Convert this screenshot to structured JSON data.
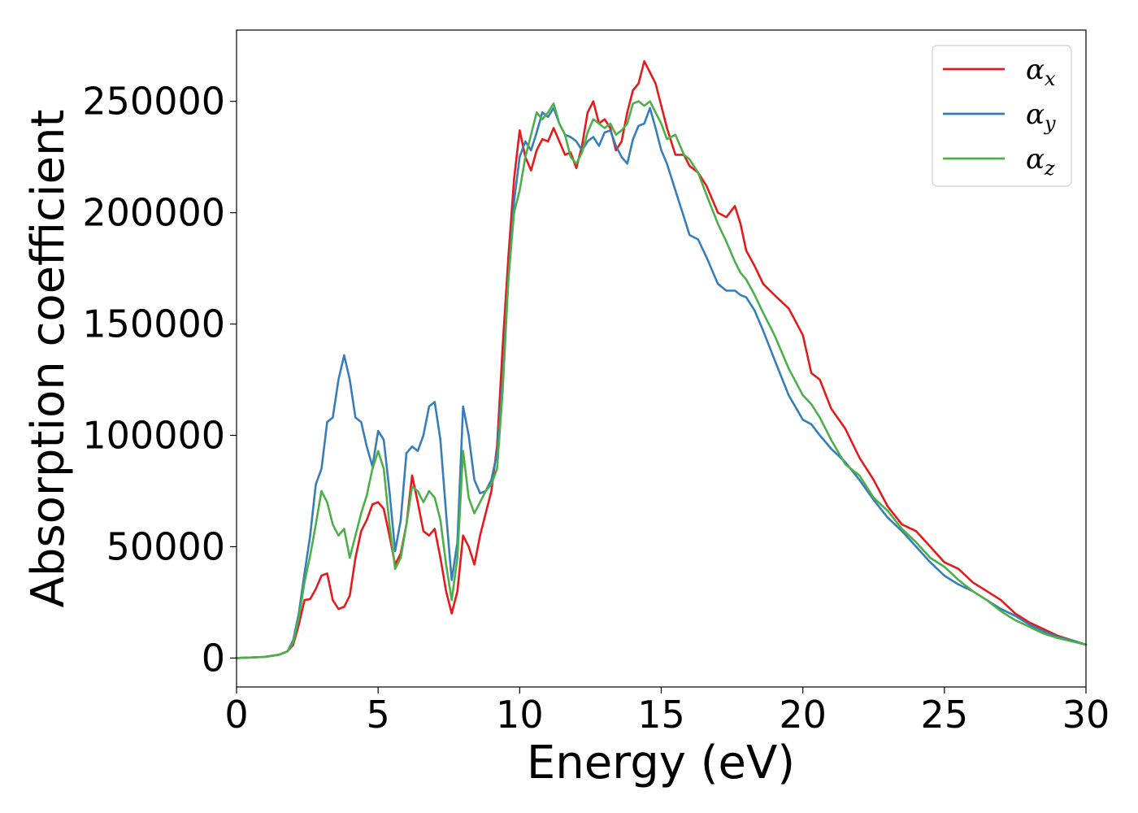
{
  "chart_data": {
    "type": "line",
    "title": "",
    "xlabel": "Energy (eV)",
    "ylabel": "Absorption coefficient",
    "xlim": [
      0,
      30
    ],
    "ylim": [
      -13000,
      282000
    ],
    "xticks": [
      0,
      5,
      10,
      15,
      20,
      25,
      30
    ],
    "yticks": [
      0,
      50000,
      100000,
      150000,
      200000,
      250000
    ],
    "grid": false,
    "legend_position": "top-right",
    "series": [
      {
        "name": "α",
        "subscript": "x",
        "color": "#e41a1c",
        "x": [
          0,
          1,
          1.5,
          1.8,
          2.0,
          2.2,
          2.4,
          2.6,
          2.8,
          3.0,
          3.2,
          3.4,
          3.6,
          3.8,
          4.0,
          4.2,
          4.4,
          4.6,
          4.8,
          5.0,
          5.2,
          5.4,
          5.6,
          5.8,
          6.0,
          6.2,
          6.4,
          6.6,
          6.8,
          7.0,
          7.2,
          7.4,
          7.6,
          7.8,
          8.0,
          8.2,
          8.4,
          8.6,
          8.8,
          9.0,
          9.2,
          9.4,
          9.6,
          9.8,
          10.0,
          10.2,
          10.4,
          10.6,
          10.8,
          11.0,
          11.2,
          11.4,
          11.6,
          11.8,
          12.0,
          12.2,
          12.4,
          12.6,
          12.8,
          13.0,
          13.2,
          13.4,
          13.6,
          13.8,
          14.0,
          14.2,
          14.4,
          14.6,
          14.8,
          15.0,
          15.2,
          15.5,
          15.8,
          16.0,
          16.3,
          16.6,
          17.0,
          17.3,
          17.6,
          17.8,
          18.0,
          18.3,
          18.6,
          19.0,
          19.5,
          20.0,
          20.3,
          20.6,
          21.0,
          21.5,
          22.0,
          22.5,
          23.0,
          23.5,
          24.0,
          24.5,
          25.0,
          25.5,
          26.0,
          26.5,
          27.0,
          27.5,
          28.0,
          28.5,
          29.0,
          29.5,
          30.0
        ],
        "y": [
          0,
          500,
          1500,
          3000,
          6000,
          15000,
          26000,
          26500,
          31000,
          37000,
          38000,
          26000,
          22000,
          23000,
          28000,
          45000,
          57000,
          62000,
          69000,
          70000,
          67000,
          55000,
          42000,
          47000,
          60000,
          82000,
          70000,
          57000,
          55000,
          58000,
          45000,
          30000,
          20000,
          30000,
          55000,
          50000,
          42000,
          55000,
          65000,
          75000,
          95000,
          140000,
          180000,
          215000,
          237000,
          225000,
          219000,
          228000,
          233000,
          232000,
          238000,
          232000,
          226000,
          227000,
          220000,
          230000,
          245000,
          250000,
          240000,
          242000,
          238000,
          228000,
          232000,
          245000,
          255000,
          258000,
          268000,
          263000,
          258000,
          248000,
          238000,
          226000,
          226000,
          221000,
          218000,
          212000,
          200000,
          198000,
          203000,
          195000,
          183000,
          176000,
          168000,
          163000,
          157000,
          145000,
          128000,
          125000,
          112000,
          103000,
          90000,
          80000,
          68000,
          60000,
          57000,
          50000,
          43000,
          40000,
          34000,
          30000,
          26000,
          20000,
          16000,
          13000,
          10000,
          8000,
          6000
        ]
      },
      {
        "name": "α",
        "subscript": "y",
        "color": "#377eb8",
        "x": [
          0,
          1,
          1.5,
          1.8,
          2.0,
          2.2,
          2.4,
          2.6,
          2.8,
          3.0,
          3.2,
          3.4,
          3.6,
          3.8,
          4.0,
          4.2,
          4.4,
          4.6,
          4.8,
          5.0,
          5.2,
          5.4,
          5.6,
          5.8,
          6.0,
          6.2,
          6.4,
          6.6,
          6.8,
          7.0,
          7.2,
          7.4,
          7.6,
          7.8,
          8.0,
          8.2,
          8.4,
          8.6,
          8.8,
          9.0,
          9.2,
          9.4,
          9.6,
          9.8,
          10.0,
          10.2,
          10.4,
          10.6,
          10.8,
          11.0,
          11.2,
          11.4,
          11.6,
          11.8,
          12.0,
          12.2,
          12.4,
          12.6,
          12.8,
          13.0,
          13.2,
          13.4,
          13.6,
          13.8,
          14.0,
          14.2,
          14.4,
          14.6,
          14.8,
          15.0,
          15.2,
          15.5,
          15.8,
          16.0,
          16.3,
          16.6,
          17.0,
          17.3,
          17.6,
          17.8,
          18.0,
          18.3,
          18.6,
          19.0,
          19.5,
          20.0,
          20.3,
          20.6,
          21.0,
          21.5,
          22.0,
          22.5,
          23.0,
          23.5,
          24.0,
          24.5,
          25.0,
          25.5,
          26.0,
          26.5,
          27.0,
          27.5,
          28.0,
          28.5,
          29.0,
          29.5,
          30.0
        ],
        "y": [
          0,
          500,
          1500,
          3000,
          8000,
          20000,
          38000,
          55000,
          78000,
          85000,
          106000,
          108000,
          125000,
          136000,
          125000,
          108000,
          106000,
          95000,
          86000,
          102000,
          98000,
          75000,
          48000,
          62000,
          92000,
          95000,
          93000,
          100000,
          113000,
          115000,
          98000,
          65000,
          35000,
          52000,
          113000,
          100000,
          80000,
          74000,
          75000,
          80000,
          92000,
          125000,
          170000,
          205000,
          225000,
          232000,
          228000,
          236000,
          245000,
          243000,
          247000,
          240000,
          235000,
          234000,
          232000,
          228000,
          232000,
          234000,
          230000,
          236000,
          237000,
          230000,
          225000,
          222000,
          233000,
          239000,
          240000,
          247000,
          238000,
          228000,
          222000,
          210000,
          198000,
          190000,
          188000,
          180000,
          168000,
          165000,
          165000,
          163000,
          162000,
          156000,
          147000,
          134000,
          118000,
          107000,
          105000,
          100000,
          94000,
          88000,
          80000,
          71000,
          63000,
          57000,
          50000,
          43000,
          37000,
          33000,
          30000,
          26000,
          22000,
          19000,
          15000,
          12000,
          9500,
          8000,
          6000
        ]
      },
      {
        "name": "α",
        "subscript": "z",
        "color": "#4daf4a",
        "x": [
          0,
          1,
          1.5,
          1.8,
          2.0,
          2.2,
          2.4,
          2.6,
          2.8,
          3.0,
          3.2,
          3.4,
          3.6,
          3.8,
          4.0,
          4.2,
          4.4,
          4.6,
          4.8,
          5.0,
          5.2,
          5.4,
          5.6,
          5.8,
          6.0,
          6.2,
          6.4,
          6.6,
          6.8,
          7.0,
          7.2,
          7.4,
          7.6,
          7.8,
          8.0,
          8.2,
          8.4,
          8.6,
          8.8,
          9.0,
          9.2,
          9.4,
          9.6,
          9.8,
          10.0,
          10.2,
          10.4,
          10.6,
          10.8,
          11.0,
          11.2,
          11.4,
          11.6,
          11.8,
          12.0,
          12.2,
          12.4,
          12.6,
          12.8,
          13.0,
          13.2,
          13.4,
          13.6,
          13.8,
          14.0,
          14.2,
          14.4,
          14.6,
          14.8,
          15.0,
          15.2,
          15.5,
          15.8,
          16.0,
          16.3,
          16.6,
          17.0,
          17.3,
          17.6,
          17.8,
          18.0,
          18.3,
          18.6,
          19.0,
          19.5,
          20.0,
          20.3,
          20.6,
          21.0,
          21.5,
          22.0,
          22.5,
          23.0,
          23.5,
          24.0,
          24.5,
          25.0,
          25.5,
          26.0,
          26.5,
          27.0,
          27.5,
          28.0,
          28.5,
          29.0,
          29.5,
          30.0
        ],
        "y": [
          0,
          500,
          1500,
          3000,
          7000,
          18000,
          34000,
          46000,
          60000,
          75000,
          70000,
          60000,
          55000,
          58000,
          45000,
          55000,
          65000,
          73000,
          85000,
          93000,
          85000,
          60000,
          40000,
          45000,
          60000,
          77000,
          75000,
          70000,
          75000,
          72000,
          62000,
          42000,
          26000,
          45000,
          93000,
          72000,
          65000,
          70000,
          75000,
          78000,
          85000,
          120000,
          170000,
          200000,
          210000,
          225000,
          235000,
          245000,
          242000,
          245000,
          249000,
          240000,
          235000,
          225000,
          222000,
          227000,
          236000,
          242000,
          240000,
          238000,
          240000,
          235000,
          237000,
          240000,
          249000,
          250000,
          248000,
          250000,
          245000,
          240000,
          233000,
          235000,
          226000,
          224000,
          218000,
          208000,
          195000,
          187000,
          178000,
          173000,
          170000,
          163000,
          155000,
          145000,
          130000,
          118000,
          114000,
          108000,
          98000,
          87000,
          82000,
          72000,
          66000,
          58000,
          52000,
          45000,
          41000,
          35000,
          30000,
          26000,
          21000,
          17000,
          14000,
          11000,
          9000,
          7500,
          6000
        ]
      }
    ]
  }
}
